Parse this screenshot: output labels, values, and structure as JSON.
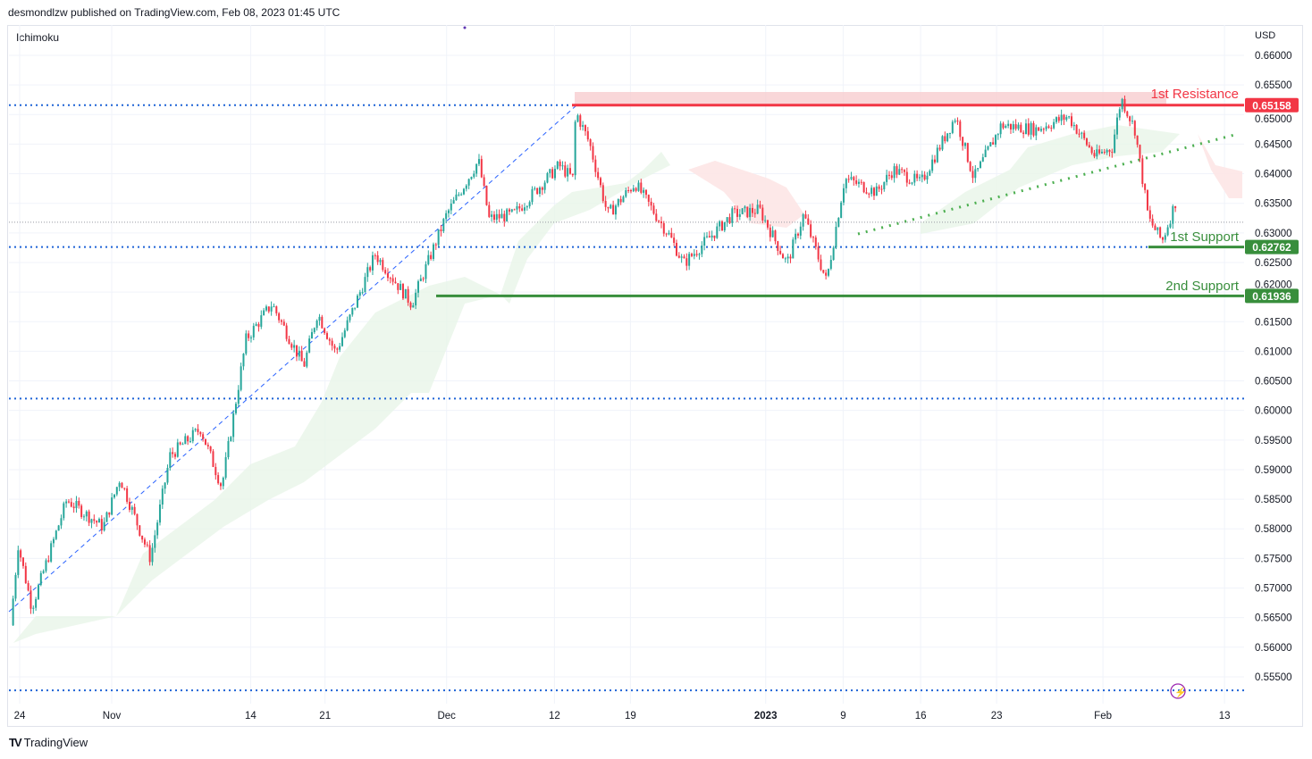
{
  "header": {
    "published": "desmondlzw published on TradingView.com, Feb 08, 2023 01:45 UTC"
  },
  "indicator": "Ichimoku",
  "currency": "USD",
  "footer": {
    "brand": "TradingView"
  },
  "colors": {
    "up": "#26a69a",
    "down": "#f23645",
    "resistance": "#f23645",
    "support": "#388e3c",
    "level": "#2962ff"
  },
  "chart_data": {
    "type": "candlestick",
    "x_unit": "trading days since Oct 24",
    "ylim": [
      0.5525,
      0.6625
    ],
    "y_ticks": [
      "0.66000",
      "0.65500",
      "0.65000",
      "0.64500",
      "0.64000",
      "0.63500",
      "0.63000",
      "0.62500",
      "0.62000",
      "0.61500",
      "0.61000",
      "0.60500",
      "0.60000",
      "0.59500",
      "0.59000",
      "0.58500",
      "0.58000",
      "0.57500",
      "0.57000",
      "0.56500",
      "0.56000",
      "0.55500"
    ],
    "x_ticks": [
      {
        "label": "24",
        "at": 0
      },
      {
        "label": "Nov",
        "at": 6.06
      },
      {
        "label": "14",
        "at": 15.2
      },
      {
        "label": "21",
        "at": 20.1
      },
      {
        "label": "Dec",
        "at": 28.1
      },
      {
        "label": "12",
        "at": 35.2
      },
      {
        "label": "19",
        "at": 40.2
      },
      {
        "label": "2023",
        "at": 49.1
      },
      {
        "label": "9",
        "at": 54.2
      },
      {
        "label": "16",
        "at": 59.3
      },
      {
        "label": "23",
        "at": 64.3
      },
      {
        "label": "Feb",
        "at": 71.3
      },
      {
        "label": "13",
        "at": 79.3
      }
    ],
    "price_path": [
      [
        -0.6,
        0.5637
      ],
      [
        -0.1,
        0.5773
      ],
      [
        0.8,
        0.5667
      ],
      [
        3.1,
        0.5849
      ],
      [
        5.5,
        0.5803
      ],
      [
        6.6,
        0.5886
      ],
      [
        8.6,
        0.575
      ],
      [
        9.9,
        0.5924
      ],
      [
        11.9,
        0.5969
      ],
      [
        13.3,
        0.5871
      ],
      [
        14.9,
        0.612
      ],
      [
        16.6,
        0.618
      ],
      [
        18.7,
        0.6075
      ],
      [
        19.6,
        0.6165
      ],
      [
        20.8,
        0.6097
      ],
      [
        23.4,
        0.6264
      ],
      [
        25.8,
        0.618
      ],
      [
        28.1,
        0.6331
      ],
      [
        30.2,
        0.6422
      ],
      [
        30.9,
        0.6324
      ],
      [
        32.5,
        0.6331
      ],
      [
        35.5,
        0.6414
      ],
      [
        36.4,
        0.6392
      ],
      [
        36.6,
        0.6505
      ],
      [
        37.5,
        0.6452
      ],
      [
        38.7,
        0.6331
      ],
      [
        40.5,
        0.6384
      ],
      [
        42.8,
        0.6294
      ],
      [
        43.7,
        0.6248
      ],
      [
        46.9,
        0.6331
      ],
      [
        48.7,
        0.6339
      ],
      [
        50.5,
        0.6248
      ],
      [
        51.6,
        0.6331
      ],
      [
        53.1,
        0.6218
      ],
      [
        54.3,
        0.6392
      ],
      [
        56.4,
        0.6369
      ],
      [
        57.5,
        0.6407
      ],
      [
        59.3,
        0.6384
      ],
      [
        61.6,
        0.6497
      ],
      [
        62.8,
        0.6392
      ],
      [
        64.6,
        0.6482
      ],
      [
        66.9,
        0.6475
      ],
      [
        69.0,
        0.6497
      ],
      [
        70.8,
        0.6429
      ],
      [
        71.9,
        0.6444
      ],
      [
        72.5,
        0.6528
      ],
      [
        73.4,
        0.6475
      ],
      [
        74.3,
        0.6324
      ],
      [
        75.2,
        0.6286
      ],
      [
        76.1,
        0.6354
      ],
      [
        76.2,
        0.6324
      ]
    ],
    "levels": [
      {
        "name": "1st Resistance",
        "value": 0.65158,
        "label": "0.65158",
        "color": "#f23645"
      },
      {
        "name": "1st Support",
        "value": 0.62762,
        "label": "0.62762",
        "color": "#388e3c"
      },
      {
        "name": "2nd Support",
        "value": 0.61936,
        "label": "0.61936",
        "color": "#388e3c"
      }
    ],
    "dotted_levels": [
      0.65158,
      0.62762,
      0.602,
      0.5527
    ],
    "last_price": 0.6318
  }
}
